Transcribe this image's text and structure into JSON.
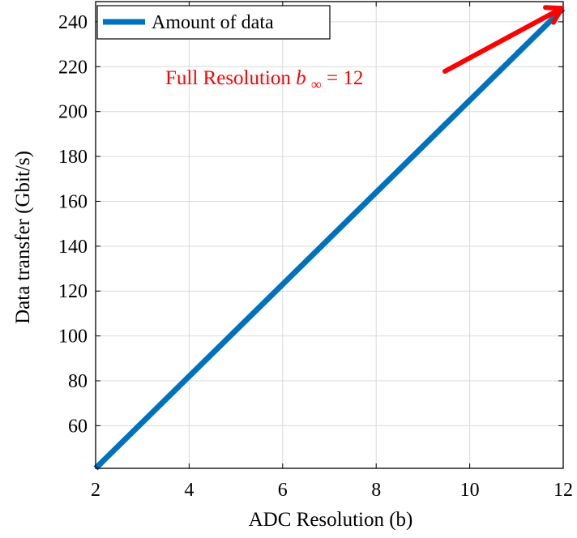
{
  "chart_data": {
    "type": "line",
    "xlabel": "ADC Resolution (b)",
    "ylabel": "Data transfer (Gbit/s)",
    "xlim": [
      2,
      12
    ],
    "ylim": [
      41,
      249
    ],
    "x_ticks": [
      2,
      4,
      6,
      8,
      10,
      12
    ],
    "y_ticks": [
      60,
      80,
      100,
      120,
      140,
      160,
      180,
      200,
      220,
      240
    ],
    "grid": true,
    "legend_position": "top-left",
    "series": [
      {
        "name": "Amount of data",
        "color": "#0072bd",
        "x": [
          2,
          12
        ],
        "y": [
          41,
          246
        ]
      }
    ],
    "annotation": {
      "text_prefix": "Full Resolution ",
      "math_symbol": "b",
      "math_subscript": "∞",
      "math_suffix": " = 12",
      "color": "#ff0000",
      "arrow_target": [
        12,
        246
      ]
    }
  }
}
